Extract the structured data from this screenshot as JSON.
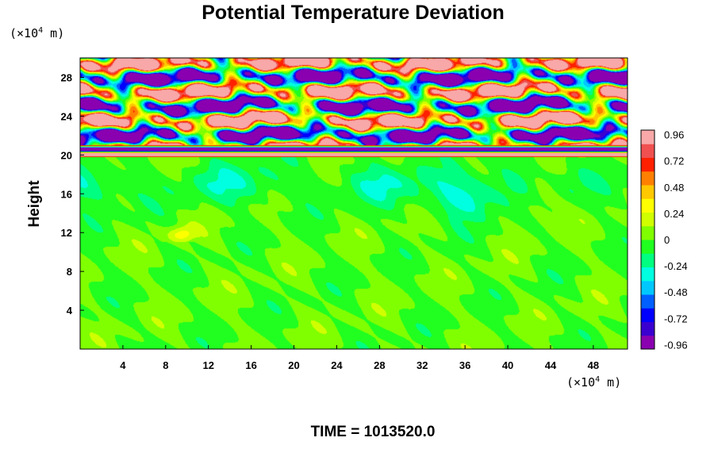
{
  "chart_data": {
    "type": "heatmap",
    "title": "Potential Temperature Deviation",
    "ylabel": "Height",
    "xlabel": "",
    "x_unit_prefix": "(×10",
    "x_unit_exp": "4",
    "x_unit_suffix": " m)",
    "y_unit_prefix": "(×10",
    "y_unit_exp": "4",
    "y_unit_suffix": " m)",
    "xlim": [
      0,
      51.2
    ],
    "ylim": [
      0,
      30
    ],
    "x_ticks": [
      4,
      8,
      12,
      16,
      20,
      24,
      28,
      32,
      36,
      40,
      44,
      48
    ],
    "y_ticks": [
      4,
      8,
      12,
      16,
      20,
      24,
      28
    ],
    "colorbar": {
      "range": [
        -1.0,
        1.0
      ],
      "tick_values": [
        0.96,
        0.72,
        0.48,
        0.24,
        0,
        -0.24,
        -0.48,
        -0.72,
        -0.96
      ],
      "tick_labels": [
        "0.96",
        "0.72",
        "0.48",
        "0.24",
        "0",
        "-0.24",
        "-0.48",
        "-0.72",
        "-0.96"
      ],
      "colors": [
        "#8a00b0",
        "#3a00d0",
        "#0000ff",
        "#0060ff",
        "#00c8ff",
        "#00ffe0",
        "#00ff80",
        "#20ff20",
        "#80ff00",
        "#d0ff00",
        "#ffff00",
        "#ffc800",
        "#ff8000",
        "#ff2000",
        "#f05050",
        "#f8a8a8"
      ]
    },
    "field_regions": [
      {
        "y_range": [
          0,
          19.8
        ],
        "description_values": "near zero, mostly -0.1 to 0.1 with weak eddies"
      },
      {
        "y_range": [
          19.8,
          30
        ],
        "description_values": "strong layered oscillations between -0.96 and 0.96"
      }
    ],
    "grid": false
  },
  "footer": {
    "time_text": "TIME = 1013520.0"
  }
}
